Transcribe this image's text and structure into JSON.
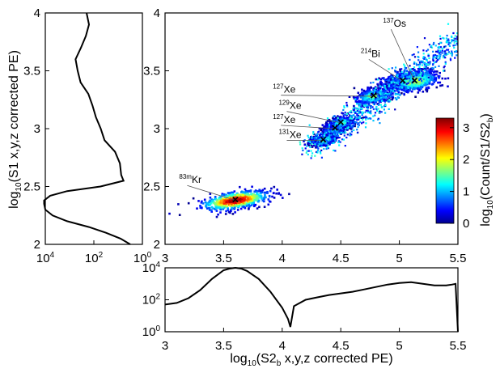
{
  "chart_data": [
    {
      "type": "heatmap",
      "title": "",
      "xlabel": {
        "pre": "log",
        "sub": "10",
        "post": "(S2",
        "sub2": "b",
        "post2": " x,y,z corrected PE)"
      },
      "ylabel": {
        "pre": "log",
        "sub": "10",
        "post": "(S1 x,y,z corrected PE)"
      },
      "xlim": [
        3,
        5.5
      ],
      "ylim": [
        2,
        4
      ],
      "xticks": [
        "3",
        "3.5",
        "4",
        "4.5",
        "5",
        "5.5"
      ],
      "yticks": [
        "2",
        "2.5",
        "3",
        "3.5",
        "4"
      ],
      "colorbar": {
        "label": {
          "pre": "log",
          "sub": "10",
          "post": "(Count/S1/S2",
          "sub2": "b",
          "post2": ")"
        },
        "range": [
          0,
          3.3
        ],
        "ticks": [
          "0",
          "1",
          "2",
          "3"
        ],
        "colormap": "jet"
      },
      "populations": [
        {
          "label": "Kr",
          "mass": "83m",
          "x": 3.6,
          "y": 2.38,
          "sx": 0.14,
          "sy": 0.035,
          "peak": 3.2
        },
        {
          "label": "Xe",
          "mass": "131",
          "x": 4.35,
          "y": 2.9,
          "sx": 0.05,
          "sy": 0.018,
          "peak": 1.4
        },
        {
          "label": "Xe",
          "mass": "127",
          "x": 4.45,
          "y": 3.0,
          "sx": 0.05,
          "sy": 0.022,
          "peak": 1.3
        },
        {
          "label": "Xe",
          "mass": "129",
          "x": 4.5,
          "y": 3.05,
          "sx": 0.05,
          "sy": 0.022,
          "peak": 1.3
        },
        {
          "label": "Xe",
          "mass": "127",
          "x": 4.78,
          "y": 3.28,
          "sx": 0.07,
          "sy": 0.03,
          "peak": 1.6
        },
        {
          "label": "Bi",
          "mass": "214",
          "x": 5.03,
          "y": 3.41,
          "sx": 0.09,
          "sy": 0.035,
          "peak": 1.7
        },
        {
          "label": "Os",
          "mass": "137",
          "x": 5.13,
          "y": 3.41,
          "sx": 0.1,
          "sy": 0.04,
          "peak": 1.8
        }
      ],
      "markers_x": [
        {
          "x": 3.6,
          "y": 2.38
        },
        {
          "x": 4.35,
          "y": 2.9
        },
        {
          "x": 4.45,
          "y": 3.0
        },
        {
          "x": 4.5,
          "y": 3.05
        },
        {
          "x": 4.78,
          "y": 3.28
        },
        {
          "x": 5.03,
          "y": 3.41
        },
        {
          "x": 5.13,
          "y": 3.41
        }
      ]
    },
    {
      "type": "line",
      "title": "",
      "xlabel": "",
      "xlim": [
        3,
        5.5
      ],
      "ylim_log10": [
        0,
        4
      ],
      "yticks": [
        {
          "base": "10",
          "exp": "0"
        },
        {
          "base": "10",
          "exp": "2"
        },
        {
          "base": "10",
          "exp": "4"
        }
      ],
      "x": [
        3.0,
        3.1,
        3.2,
        3.3,
        3.4,
        3.5,
        3.55,
        3.6,
        3.65,
        3.7,
        3.8,
        3.9,
        4.0,
        4.05,
        4.07,
        4.1,
        4.2,
        4.3,
        4.4,
        4.5,
        4.6,
        4.7,
        4.8,
        4.9,
        5.0,
        5.1,
        5.2,
        5.3,
        5.4,
        5.45,
        5.48,
        5.5
      ],
      "log10_count": [
        1.7,
        1.8,
        2.1,
        2.6,
        3.3,
        3.85,
        3.95,
        4.0,
        3.95,
        3.8,
        3.3,
        2.5,
        1.5,
        0.8,
        0.3,
        1.6,
        2.0,
        2.15,
        2.3,
        2.4,
        2.5,
        2.65,
        2.8,
        2.95,
        3.05,
        3.1,
        3.0,
        2.9,
        2.9,
        2.95,
        3.0,
        0.0
      ]
    },
    {
      "type": "line",
      "title": "",
      "ylim": [
        2,
        4
      ],
      "xlim_log10": [
        0,
        4
      ],
      "xticks": [
        {
          "base": "10",
          "exp": "4"
        },
        {
          "base": "10",
          "exp": "2"
        },
        {
          "base": "10",
          "exp": "0"
        }
      ],
      "y": [
        2.0,
        2.05,
        2.1,
        2.15,
        2.2,
        2.25,
        2.3,
        2.35,
        2.38,
        2.42,
        2.46,
        2.5,
        2.55,
        2.6,
        2.7,
        2.8,
        2.9,
        3.0,
        3.1,
        3.2,
        3.3,
        3.4,
        3.5,
        3.6,
        3.7,
        3.8,
        3.9,
        4.0
      ],
      "log10_count": [
        0.5,
        0.9,
        1.5,
        2.2,
        3.1,
        3.7,
        4.0,
        4.05,
        4.05,
        3.8,
        3.1,
        1.7,
        0.8,
        0.9,
        1.0,
        1.2,
        1.5,
        1.7,
        1.9,
        2.1,
        2.3,
        2.5,
        2.6,
        2.7,
        2.6,
        2.4,
        2.2,
        2.3
      ]
    }
  ]
}
